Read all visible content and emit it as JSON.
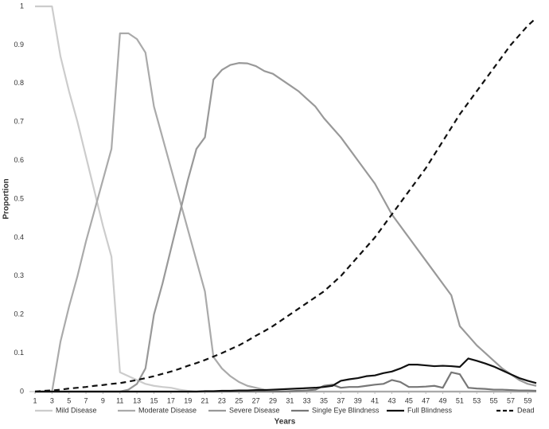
{
  "chart_data": {
    "type": "line",
    "x_label": "Years",
    "y_label": "Proportion",
    "x": [
      1,
      2,
      3,
      4,
      5,
      6,
      7,
      8,
      9,
      10,
      11,
      12,
      13,
      14,
      15,
      16,
      17,
      18,
      19,
      20,
      21,
      22,
      23,
      24,
      25,
      26,
      27,
      28,
      29,
      30,
      31,
      32,
      33,
      34,
      35,
      36,
      37,
      38,
      39,
      40,
      41,
      42,
      43,
      44,
      45,
      46,
      47,
      48,
      49,
      50,
      51,
      52,
      53,
      54,
      55,
      56,
      57,
      58,
      59,
      60
    ],
    "xlim": [
      1,
      60
    ],
    "xticks": [
      1,
      3,
      5,
      7,
      9,
      11,
      13,
      15,
      17,
      19,
      21,
      23,
      25,
      27,
      29,
      31,
      33,
      35,
      37,
      39,
      41,
      43,
      45,
      47,
      49,
      51,
      53,
      55,
      57,
      59
    ],
    "ylim": [
      0,
      1
    ],
    "yticks": [
      0,
      0.1,
      0.2,
      0.3,
      0.4,
      0.5,
      0.6,
      0.7,
      0.8,
      0.9,
      1
    ],
    "grid": false,
    "legend": "bottom",
    "series": [
      {
        "name": "Mild Disease",
        "color": "#cccccc",
        "line_style": "solid",
        "values": [
          1,
          1,
          1,
          0.87,
          0.78,
          0.7,
          0.61,
          0.52,
          0.43,
          0.35,
          0.05,
          0.04,
          0.03,
          0.02,
          0.015,
          0.012,
          0.01,
          0.005,
          0.002,
          0,
          0,
          0,
          0,
          0,
          0,
          0,
          0,
          0,
          0,
          0,
          0,
          0,
          0,
          0,
          0,
          0,
          0,
          0,
          0,
          0,
          0,
          0,
          0,
          0,
          0,
          0,
          0,
          0,
          0,
          0,
          0,
          0,
          0,
          0,
          0,
          0,
          0,
          0,
          0,
          0
        ]
      },
      {
        "name": "Moderate Disease",
        "color": "#aaaaaa",
        "line_style": "solid",
        "values": [
          0,
          0,
          0,
          0.13,
          0.22,
          0.3,
          0.39,
          0.47,
          0.55,
          0.63,
          0.93,
          0.93,
          0.915,
          0.88,
          0.74,
          0.66,
          0.58,
          0.5,
          0.42,
          0.34,
          0.26,
          0.09,
          0.06,
          0.04,
          0.025,
          0.015,
          0.01,
          0.005,
          0.002,
          0,
          0,
          0,
          0,
          0,
          0,
          0,
          0,
          0,
          0,
          0,
          0,
          0,
          0,
          0,
          0,
          0,
          0,
          0,
          0,
          0,
          0,
          0,
          0,
          0,
          0,
          0,
          0,
          0,
          0,
          0
        ]
      },
      {
        "name": "Severe Disease",
        "color": "#999999",
        "line_style": "solid",
        "values": [
          0,
          0,
          0,
          0,
          0,
          0,
          0,
          0,
          0,
          0,
          0,
          0.005,
          0.02,
          0.06,
          0.2,
          0.28,
          0.37,
          0.46,
          0.55,
          0.63,
          0.66,
          0.81,
          0.835,
          0.848,
          0.853,
          0.852,
          0.845,
          0.832,
          0.825,
          0.81,
          0.795,
          0.78,
          0.76,
          0.74,
          0.71,
          0.685,
          0.66,
          0.63,
          0.6,
          0.57,
          0.54,
          0.5,
          0.46,
          0.43,
          0.4,
          0.37,
          0.34,
          0.31,
          0.28,
          0.25,
          0.17,
          0.145,
          0.12,
          0.1,
          0.08,
          0.06,
          0.045,
          0.03,
          0.02,
          0.015
        ]
      },
      {
        "name": "Single Eye Blindness",
        "color": "#777777",
        "line_style": "solid",
        "values": [
          0,
          0,
          0,
          0,
          0,
          0,
          0,
          0,
          0,
          0,
          0,
          0,
          0,
          0,
          0,
          0,
          0,
          0,
          0,
          0,
          0,
          0,
          0,
          0,
          0,
          0,
          0,
          0,
          0,
          0,
          0.001,
          0.002,
          0.003,
          0.005,
          0.015,
          0.018,
          0.01,
          0.012,
          0.012,
          0.015,
          0.018,
          0.02,
          0.03,
          0.025,
          0.012,
          0.012,
          0.013,
          0.015,
          0.01,
          0.05,
          0.045,
          0.01,
          0.008,
          0.007,
          0.005,
          0.005,
          0.004,
          0.003,
          0.003,
          0.002
        ]
      },
      {
        "name": "Full Blindness",
        "color": "#111111",
        "line_style": "solid",
        "values": [
          0,
          0,
          0,
          0,
          0,
          0,
          0,
          0,
          0,
          0,
          0,
          0,
          0,
          0,
          0,
          0,
          0,
          0,
          0,
          0,
          0.001,
          0.001,
          0.002,
          0.002,
          0.003,
          0.003,
          0.004,
          0.004,
          0.005,
          0.006,
          0.007,
          0.008,
          0.009,
          0.01,
          0.012,
          0.015,
          0.028,
          0.032,
          0.035,
          0.04,
          0.042,
          0.048,
          0.052,
          0.06,
          0.07,
          0.07,
          0.068,
          0.066,
          0.067,
          0.066,
          0.064,
          0.086,
          0.08,
          0.073,
          0.065,
          0.055,
          0.045,
          0.035,
          0.028,
          0.022
        ]
      },
      {
        "name": "Dead",
        "color": "#111111",
        "line_style": "dashed",
        "values": [
          0,
          0.002,
          0.003,
          0.005,
          0.008,
          0.01,
          0.012,
          0.015,
          0.017,
          0.02,
          0.022,
          0.026,
          0.03,
          0.035,
          0.04,
          0.046,
          0.052,
          0.059,
          0.067,
          0.074,
          0.082,
          0.091,
          0.1,
          0.11,
          0.12,
          0.132,
          0.145,
          0.157,
          0.17,
          0.185,
          0.2,
          0.215,
          0.23,
          0.245,
          0.26,
          0.28,
          0.3,
          0.325,
          0.35,
          0.375,
          0.4,
          0.43,
          0.46,
          0.49,
          0.52,
          0.55,
          0.58,
          0.615,
          0.65,
          0.685,
          0.72,
          0.75,
          0.78,
          0.81,
          0.84,
          0.87,
          0.9,
          0.925,
          0.95,
          0.97
        ]
      }
    ]
  }
}
